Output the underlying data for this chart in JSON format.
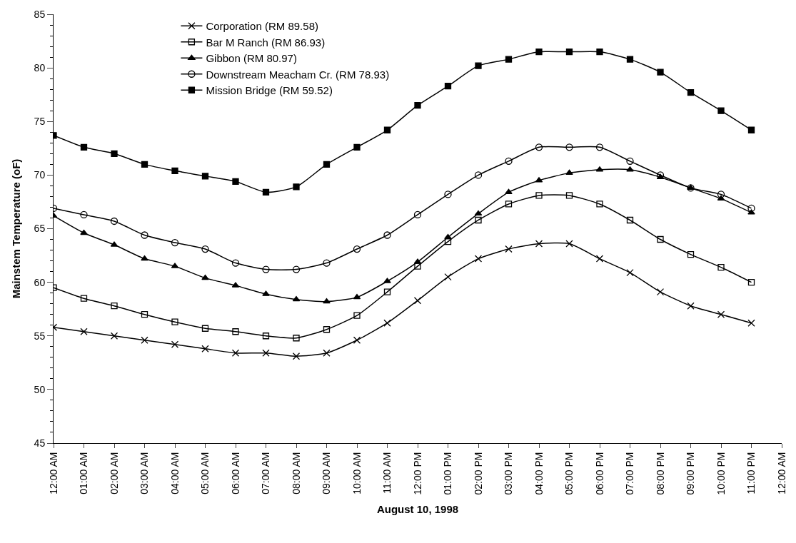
{
  "chart_data": {
    "type": "line",
    "xlabel": "August 10, 1998",
    "ylabel": "Mainstem Temperature (oF)",
    "x": [
      0,
      1,
      2,
      3,
      4,
      5,
      6,
      7,
      8,
      9,
      10,
      11,
      12,
      13,
      14,
      15,
      16,
      17,
      18,
      19,
      20,
      21,
      22,
      23
    ],
    "xlim": [
      0,
      24
    ],
    "xticks": [
      {
        "value": 0,
        "label": "12:00 AM"
      },
      {
        "value": 1,
        "label": "01:00 AM"
      },
      {
        "value": 2,
        "label": "02:00 AM"
      },
      {
        "value": 3,
        "label": "03:00 AM"
      },
      {
        "value": 4,
        "label": "04:00 AM"
      },
      {
        "value": 5,
        "label": "05:00 AM"
      },
      {
        "value": 6,
        "label": "06:00 AM"
      },
      {
        "value": 7,
        "label": "07:00 AM"
      },
      {
        "value": 8,
        "label": "08:00 AM"
      },
      {
        "value": 9,
        "label": "09:00 AM"
      },
      {
        "value": 10,
        "label": "10:00 AM"
      },
      {
        "value": 11,
        "label": "11:00 AM"
      },
      {
        "value": 12,
        "label": "12:00 PM"
      },
      {
        "value": 13,
        "label": "01:00 PM"
      },
      {
        "value": 14,
        "label": "02:00 PM"
      },
      {
        "value": 15,
        "label": "03:00 PM"
      },
      {
        "value": 16,
        "label": "04:00 PM"
      },
      {
        "value": 17,
        "label": "05:00 PM"
      },
      {
        "value": 18,
        "label": "06:00 PM"
      },
      {
        "value": 19,
        "label": "07:00 PM"
      },
      {
        "value": 20,
        "label": "08:00 PM"
      },
      {
        "value": 21,
        "label": "09:00 PM"
      },
      {
        "value": 22,
        "label": "10:00 PM"
      },
      {
        "value": 23,
        "label": "11:00 PM"
      },
      {
        "value": 24,
        "label": "12:00 AM"
      }
    ],
    "ylim": [
      45,
      85
    ],
    "yticks": [
      45,
      50,
      55,
      60,
      65,
      70,
      75,
      80,
      85
    ],
    "grid": false,
    "legend": "top left",
    "line_style": "solid",
    "series": [
      {
        "name": "Corporation (RM 89.58)",
        "color": "#000000",
        "marker": "cross",
        "values": [
          55.8,
          55.4,
          55.0,
          54.6,
          54.2,
          53.8,
          53.4,
          53.4,
          53.1,
          53.4,
          54.6,
          56.2,
          58.3,
          60.5,
          62.2,
          63.1,
          63.6,
          63.6,
          62.2,
          60.9,
          59.1,
          57.8,
          57.0,
          56.2
        ]
      },
      {
        "name": "Bar M Ranch (RM 86.93)",
        "color": "#000000",
        "marker": "square-open",
        "values": [
          59.5,
          58.5,
          57.8,
          57.0,
          56.3,
          55.7,
          55.4,
          55.0,
          54.8,
          55.6,
          56.9,
          59.1,
          61.5,
          63.8,
          65.8,
          67.3,
          68.1,
          68.1,
          67.3,
          65.8,
          64.0,
          62.6,
          61.4,
          60.0
        ]
      },
      {
        "name": "Gibbon (RM 80.97)",
        "color": "#000000",
        "marker": "triangle",
        "values": [
          66.2,
          64.6,
          63.5,
          62.2,
          61.5,
          60.4,
          59.7,
          58.9,
          58.4,
          58.2,
          58.6,
          60.1,
          61.9,
          64.2,
          66.4,
          68.4,
          69.5,
          70.2,
          70.5,
          70.5,
          69.8,
          68.8,
          67.8,
          66.5
        ]
      },
      {
        "name": "Downstream Meacham Cr. (RM 78.93)",
        "color": "#000000",
        "marker": "circle-open",
        "values": [
          66.9,
          66.3,
          65.7,
          64.4,
          63.7,
          63.1,
          61.8,
          61.2,
          61.2,
          61.8,
          63.1,
          64.4,
          66.3,
          68.2,
          70.0,
          71.3,
          72.6,
          72.6,
          72.6,
          71.3,
          70.0,
          68.8,
          68.2,
          66.9
        ]
      },
      {
        "name": "Mission Bridge (RM 59.52)",
        "color": "#000000",
        "marker": "square",
        "values": [
          73.7,
          72.6,
          72.0,
          71.0,
          70.4,
          69.9,
          69.4,
          68.4,
          68.9,
          71.0,
          72.6,
          74.2,
          76.5,
          78.3,
          80.2,
          80.8,
          81.5,
          81.5,
          81.5,
          80.8,
          79.6,
          77.7,
          76.0,
          74.2
        ]
      }
    ]
  }
}
